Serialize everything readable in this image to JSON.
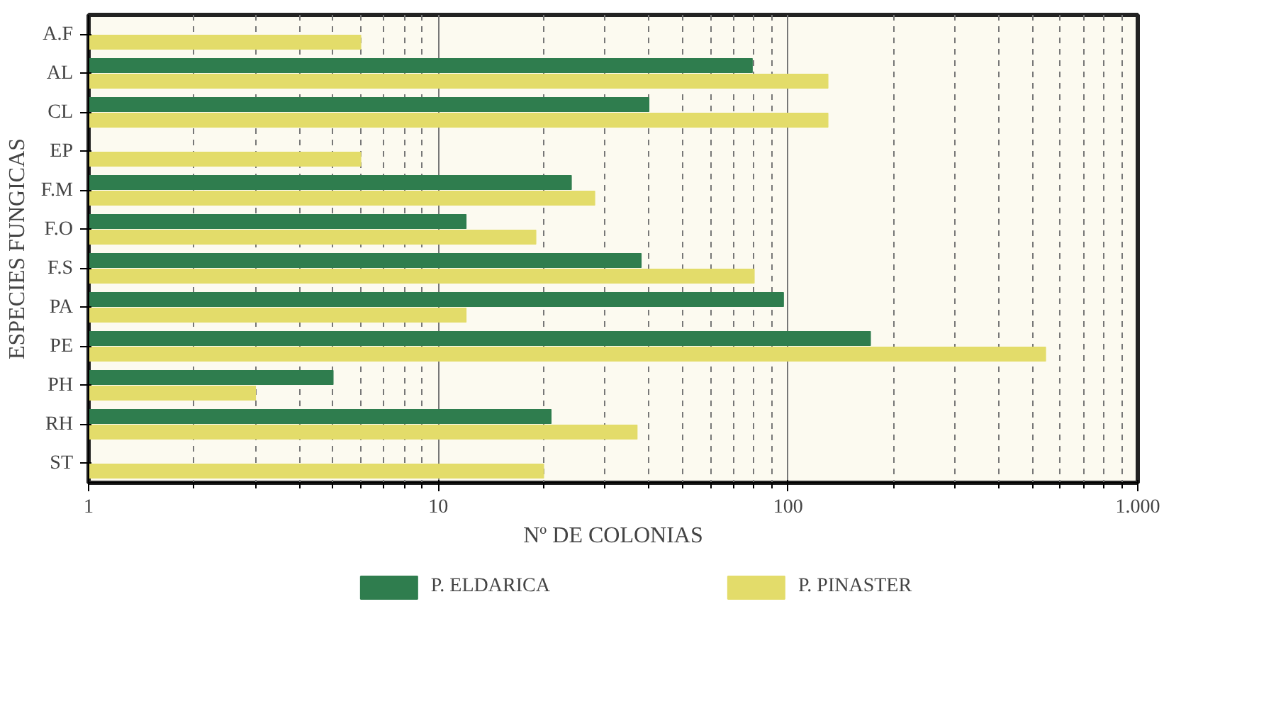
{
  "chart_data": {
    "type": "bar",
    "orientation": "horizontal",
    "log": "x",
    "xlabel": "Nº DE COLONIAS",
    "ylabel": "ESPECIES FUNGICAS",
    "categories": [
      "A.F",
      "AL",
      "CL",
      "EP",
      "F.M",
      "F.O",
      "F.S",
      "PA",
      "PE",
      "PH",
      "RH",
      "ST"
    ],
    "series": [
      {
        "name": "P. ELDARICA",
        "color": "#2f7d4e",
        "values": [
          null,
          79,
          40,
          1,
          24,
          12,
          38,
          97,
          172,
          5,
          21,
          null
        ]
      },
      {
        "name": "P. PINASTER",
        "color": "#e3dc6a",
        "values": [
          6,
          130,
          130,
          6,
          28,
          19,
          80,
          12,
          545,
          3,
          37,
          20
        ]
      }
    ],
    "xlim": [
      1,
      1000
    ],
    "xticks": [
      1,
      {
        "value": 2,
        "label": null
      },
      {
        "value": 3,
        "label": null
      },
      {
        "value": 4,
        "label": null
      },
      {
        "value": 5,
        "label": null
      },
      {
        "value": 6,
        "label": null
      },
      {
        "value": 7,
        "label": null
      },
      {
        "value": 8,
        "label": null
      },
      {
        "value": 9,
        "label": null
      },
      10,
      {
        "value": 20,
        "label": null
      },
      {
        "value": 30,
        "label": null
      },
      {
        "value": 40,
        "label": null
      },
      {
        "value": 50,
        "label": null
      },
      {
        "value": 60,
        "label": null
      },
      {
        "value": 70,
        "label": null
      },
      {
        "value": 80,
        "label": null
      },
      {
        "value": 90,
        "label": null
      },
      100,
      {
        "value": 200,
        "label": null
      },
      {
        "value": 300,
        "label": null
      },
      {
        "value": 400,
        "label": null
      },
      {
        "value": 500,
        "label": null
      },
      {
        "value": 600,
        "label": null
      },
      {
        "value": 700,
        "label": null
      },
      {
        "value": 800,
        "label": null
      },
      {
        "value": 900,
        "label": null
      },
      {
        "value": 1000,
        "label": "1.000"
      }
    ],
    "grid": "x",
    "legend": "bottom"
  }
}
